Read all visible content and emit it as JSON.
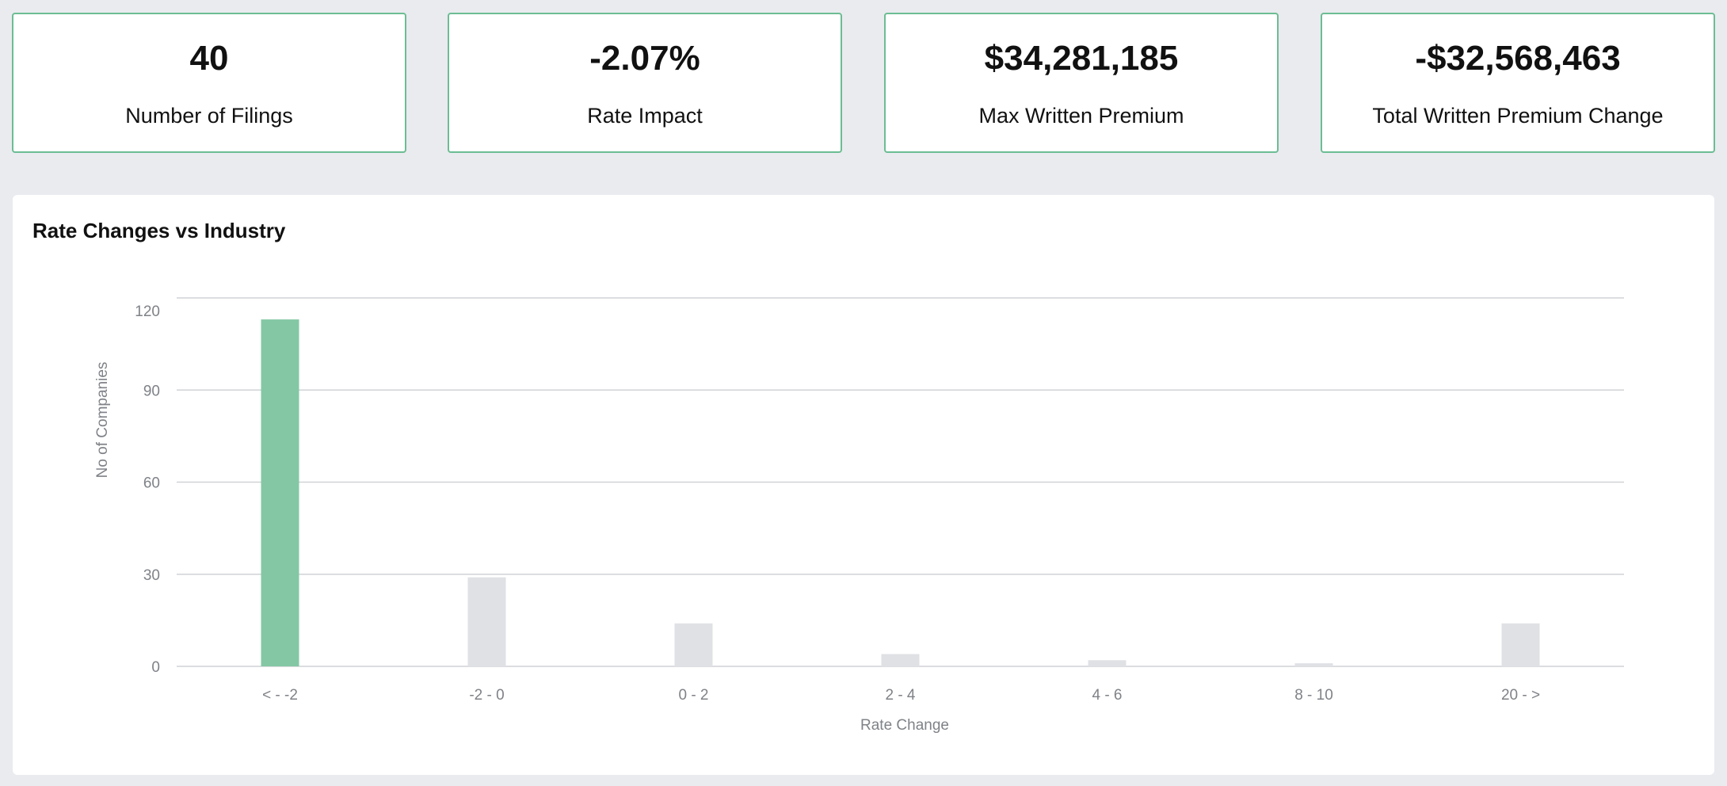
{
  "kpis": [
    {
      "value": "40",
      "label": "Number of Filings"
    },
    {
      "value": "-2.07%",
      "label": "Rate Impact"
    },
    {
      "value": "$34,281,185",
      "label": "Max Written Premium"
    },
    {
      "value": "-$32,568,463",
      "label": "Total Written Premium Change"
    }
  ],
  "colors": {
    "page_bg": "#e9ebef",
    "card_border": "#6cbd93",
    "highlight_bar": "#84c7a4",
    "other_bar": "#dfe1e5",
    "gridline": "#d0d2d6"
  },
  "chart_data": {
    "type": "bar",
    "title": "Rate Changes vs Industry",
    "xlabel": "Rate Change",
    "ylabel": "No of Companies",
    "categories": [
      "< - -2",
      "-2 - 0",
      "0 - 2",
      "2 - 4",
      "4 - 6",
      "8 - 10",
      "20 - >"
    ],
    "values": [
      113,
      29,
      14,
      4,
      2,
      1,
      14
    ],
    "highlight_index": 0,
    "ylim": [
      0,
      120
    ],
    "yticks": [
      0,
      30,
      60,
      90,
      120
    ],
    "grid": true,
    "legend": "none"
  }
}
